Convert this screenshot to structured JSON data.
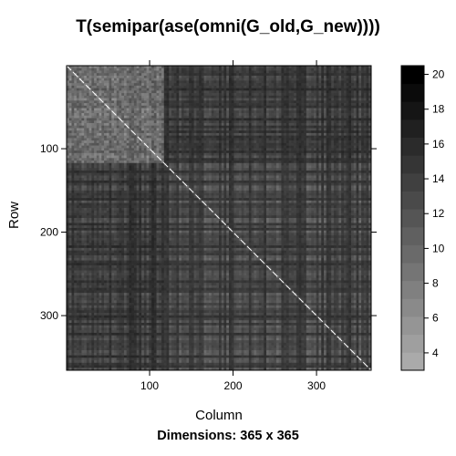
{
  "chart_data": {
    "type": "heatmap",
    "title": "T(semipar(ase(omni(G_old,G_new))))",
    "subtitle": "Dimensions: 365 x 365",
    "xlabel": "Column",
    "ylabel": "Row",
    "x_range": [
      1,
      365
    ],
    "y_range": [
      1,
      365
    ],
    "x_ticks": [
      100,
      200,
      300
    ],
    "y_ticks": [
      100,
      200,
      300
    ],
    "y_axis_reversed": true,
    "block_boundary": 118,
    "diagonal_line": true,
    "colorbar": {
      "range": [
        3,
        20.5
      ],
      "ticks": [
        4,
        6,
        8,
        10,
        12,
        14,
        16,
        18,
        20
      ],
      "n_bins": 17,
      "color_low": "#aaaaaa",
      "color_high": "#000000"
    }
  }
}
